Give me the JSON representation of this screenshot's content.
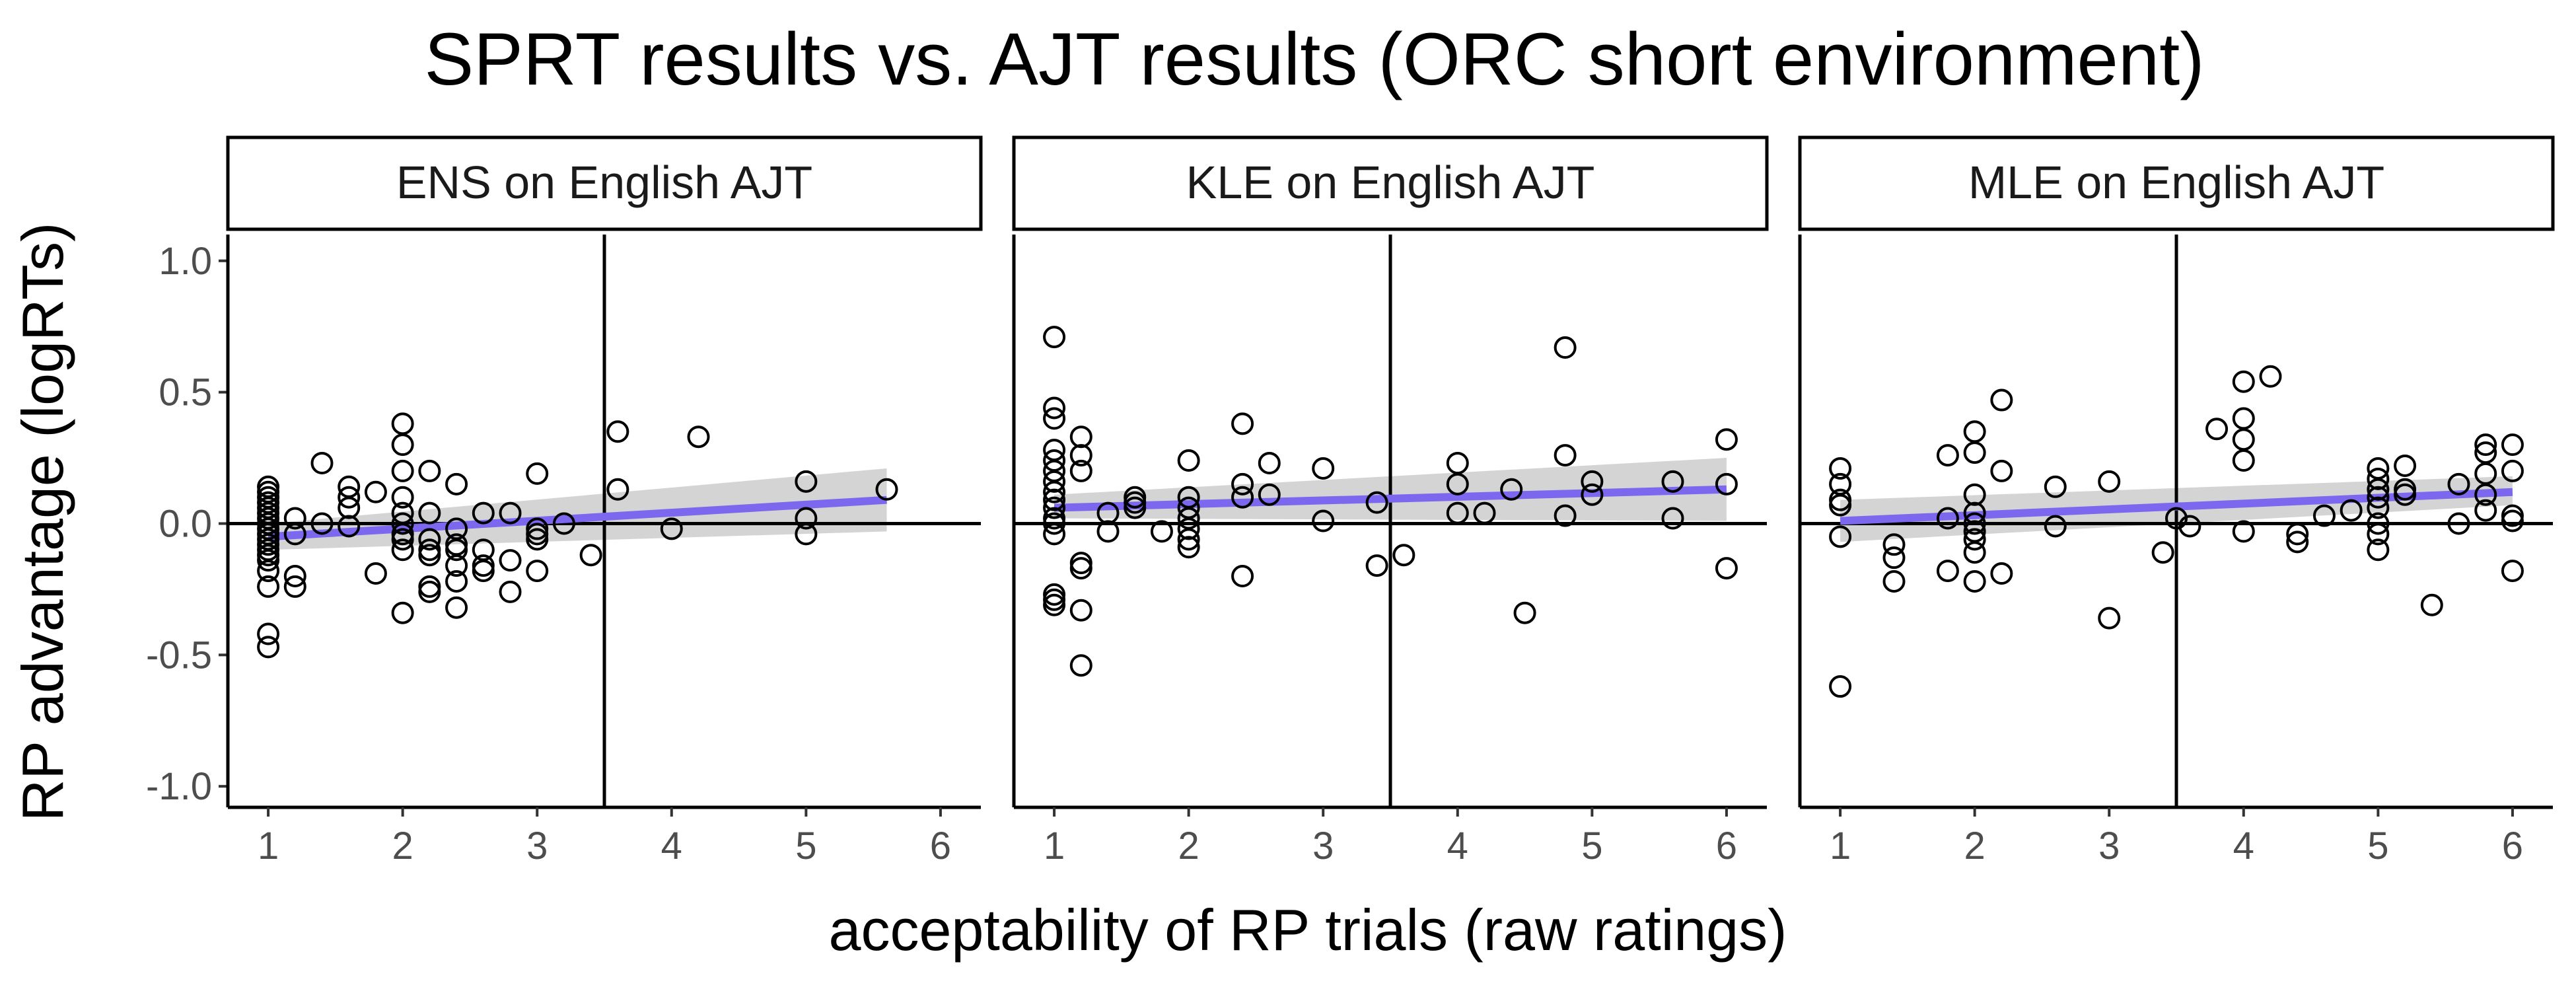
{
  "chart_data": {
    "type": "scatter",
    "title": "SPRT results vs. AJT results (ORC short environment)",
    "xlabel": "acceptability of RP trials (raw ratings)",
    "ylabel": "RP advantage (logRTs)",
    "xlim": [
      0.7,
      6.3
    ],
    "ylim": [
      -1.08,
      1.1
    ],
    "xticks": [
      1,
      2,
      3,
      4,
      5,
      6
    ],
    "yticks": [
      -1.0,
      -0.5,
      0.0,
      0.5,
      1.0
    ],
    "ytick_labels": [
      "-1.0",
      "-0.5",
      "0.0",
      "0.5",
      "1.0"
    ],
    "reference_lines": {
      "vertical_x": 3.5,
      "horizontal_y": 0
    },
    "colors": {
      "fit_line": "#7b68ee",
      "confidence_band": "#cccccc",
      "points": "#000000"
    },
    "panels": [
      {
        "label": "ENS on English AJT",
        "fit": {
          "x": [
            1.0,
            5.6
          ],
          "y": [
            -0.05,
            0.09
          ],
          "band_lo": [
            -0.1,
            -0.03
          ],
          "band_hi": [
            0.0,
            0.21
          ]
        },
        "points": [
          [
            1.0,
            0.14
          ],
          [
            1.0,
            0.12
          ],
          [
            1.0,
            0.1
          ],
          [
            1.0,
            0.08
          ],
          [
            1.0,
            0.06
          ],
          [
            1.0,
            0.04
          ],
          [
            1.0,
            0.02
          ],
          [
            1.0,
            0.0
          ],
          [
            1.0,
            -0.02
          ],
          [
            1.0,
            -0.04
          ],
          [
            1.0,
            -0.06
          ],
          [
            1.0,
            -0.08
          ],
          [
            1.0,
            -0.1
          ],
          [
            1.0,
            -0.12
          ],
          [
            1.0,
            -0.14
          ],
          [
            1.0,
            -0.18
          ],
          [
            1.0,
            -0.24
          ],
          [
            1.0,
            -0.42
          ],
          [
            1.0,
            -0.47
          ],
          [
            1.2,
            0.02
          ],
          [
            1.2,
            -0.04
          ],
          [
            1.2,
            -0.2
          ],
          [
            1.2,
            -0.24
          ],
          [
            1.4,
            0.23
          ],
          [
            1.4,
            0.0
          ],
          [
            1.6,
            0.14
          ],
          [
            1.6,
            0.1
          ],
          [
            1.6,
            0.06
          ],
          [
            1.6,
            -0.01
          ],
          [
            1.8,
            0.12
          ],
          [
            1.8,
            -0.19
          ],
          [
            2.0,
            0.38
          ],
          [
            2.0,
            0.3
          ],
          [
            2.0,
            0.2
          ],
          [
            2.0,
            0.1
          ],
          [
            2.0,
            0.04
          ],
          [
            2.0,
            0.0
          ],
          [
            2.0,
            -0.04
          ],
          [
            2.0,
            -0.06
          ],
          [
            2.0,
            -0.1
          ],
          [
            2.0,
            -0.34
          ],
          [
            2.2,
            0.2
          ],
          [
            2.2,
            0.04
          ],
          [
            2.2,
            -0.06
          ],
          [
            2.2,
            -0.1
          ],
          [
            2.2,
            -0.12
          ],
          [
            2.2,
            -0.24
          ],
          [
            2.2,
            -0.26
          ],
          [
            2.4,
            0.15
          ],
          [
            2.4,
            -0.02
          ],
          [
            2.4,
            -0.08
          ],
          [
            2.4,
            -0.1
          ],
          [
            2.4,
            -0.16
          ],
          [
            2.4,
            -0.22
          ],
          [
            2.4,
            -0.32
          ],
          [
            2.6,
            0.04
          ],
          [
            2.6,
            -0.1
          ],
          [
            2.6,
            -0.16
          ],
          [
            2.6,
            -0.18
          ],
          [
            2.8,
            0.04
          ],
          [
            2.8,
            -0.14
          ],
          [
            2.8,
            -0.26
          ],
          [
            3.0,
            0.19
          ],
          [
            3.0,
            -0.02
          ],
          [
            3.0,
            -0.04
          ],
          [
            3.0,
            -0.06
          ],
          [
            3.0,
            -0.18
          ],
          [
            3.2,
            0.0
          ],
          [
            3.4,
            -0.12
          ],
          [
            3.6,
            0.35
          ],
          [
            3.6,
            0.13
          ],
          [
            4.0,
            -0.02
          ],
          [
            4.2,
            0.33
          ],
          [
            5.0,
            0.16
          ],
          [
            5.0,
            0.02
          ],
          [
            5.0,
            -0.04
          ],
          [
            5.6,
            0.13
          ]
        ]
      },
      {
        "label": "KLE on English AJT",
        "fit": {
          "x": [
            1.0,
            6.0
          ],
          "y": [
            0.06,
            0.13
          ],
          "band_lo": [
            0.02,
            0.01
          ],
          "band_hi": [
            0.11,
            0.25
          ]
        },
        "points": [
          [
            1.0,
            0.71
          ],
          [
            1.0,
            0.44
          ],
          [
            1.0,
            0.4
          ],
          [
            1.0,
            0.28
          ],
          [
            1.0,
            0.24
          ],
          [
            1.0,
            0.2
          ],
          [
            1.0,
            0.16
          ],
          [
            1.0,
            0.12
          ],
          [
            1.0,
            0.09
          ],
          [
            1.0,
            0.06
          ],
          [
            1.0,
            0.02
          ],
          [
            1.0,
            0.0
          ],
          [
            1.0,
            -0.04
          ],
          [
            1.0,
            -0.27
          ],
          [
            1.0,
            -0.29
          ],
          [
            1.0,
            -0.31
          ],
          [
            1.2,
            0.33
          ],
          [
            1.2,
            0.26
          ],
          [
            1.2,
            0.2
          ],
          [
            1.2,
            -0.15
          ],
          [
            1.2,
            -0.17
          ],
          [
            1.2,
            -0.33
          ],
          [
            1.2,
            -0.54
          ],
          [
            1.4,
            0.04
          ],
          [
            1.4,
            -0.03
          ],
          [
            1.6,
            0.1
          ],
          [
            1.6,
            0.08
          ],
          [
            1.6,
            0.06
          ],
          [
            1.8,
            -0.03
          ],
          [
            2.0,
            0.24
          ],
          [
            2.0,
            0.1
          ],
          [
            2.0,
            0.06
          ],
          [
            2.0,
            0.02
          ],
          [
            2.0,
            -0.02
          ],
          [
            2.0,
            -0.06
          ],
          [
            2.0,
            -0.09
          ],
          [
            2.4,
            0.38
          ],
          [
            2.4,
            0.15
          ],
          [
            2.4,
            0.1
          ],
          [
            2.4,
            -0.2
          ],
          [
            2.6,
            0.23
          ],
          [
            2.6,
            0.11
          ],
          [
            3.0,
            0.21
          ],
          [
            3.0,
            0.01
          ],
          [
            3.4,
            0.08
          ],
          [
            3.4,
            -0.16
          ],
          [
            3.6,
            -0.12
          ],
          [
            4.0,
            0.23
          ],
          [
            4.0,
            0.15
          ],
          [
            4.0,
            0.04
          ],
          [
            4.2,
            0.04
          ],
          [
            4.4,
            0.13
          ],
          [
            4.5,
            -0.34
          ],
          [
            4.8,
            0.67
          ],
          [
            4.8,
            0.26
          ],
          [
            4.8,
            0.03
          ],
          [
            5.0,
            0.16
          ],
          [
            5.0,
            0.11
          ],
          [
            5.6,
            0.16
          ],
          [
            5.6,
            0.02
          ],
          [
            6.0,
            0.32
          ],
          [
            6.0,
            0.15
          ],
          [
            6.0,
            -0.17
          ]
        ]
      },
      {
        "label": "MLE on English AJT",
        "fit": {
          "x": [
            1.0,
            6.0
          ],
          "y": [
            0.01,
            0.12
          ],
          "band_lo": [
            -0.07,
            0.07
          ],
          "band_hi": [
            0.09,
            0.18
          ]
        },
        "points": [
          [
            1.0,
            0.21
          ],
          [
            1.0,
            0.15
          ],
          [
            1.0,
            0.09
          ],
          [
            1.0,
            0.07
          ],
          [
            1.0,
            -0.05
          ],
          [
            1.0,
            -0.62
          ],
          [
            1.4,
            -0.08
          ],
          [
            1.4,
            -0.13
          ],
          [
            1.4,
            -0.22
          ],
          [
            1.8,
            0.26
          ],
          [
            1.8,
            0.02
          ],
          [
            1.8,
            -0.18
          ],
          [
            2.0,
            0.35
          ],
          [
            2.0,
            0.27
          ],
          [
            2.0,
            0.11
          ],
          [
            2.0,
            0.04
          ],
          [
            2.0,
            0.0
          ],
          [
            2.0,
            -0.03
          ],
          [
            2.0,
            -0.06
          ],
          [
            2.0,
            -0.11
          ],
          [
            2.0,
            -0.22
          ],
          [
            2.2,
            0.47
          ],
          [
            2.2,
            0.2
          ],
          [
            2.2,
            -0.19
          ],
          [
            2.6,
            0.14
          ],
          [
            2.6,
            -0.01
          ],
          [
            3.0,
            0.16
          ],
          [
            3.0,
            -0.36
          ],
          [
            3.4,
            -0.11
          ],
          [
            3.5,
            0.02
          ],
          [
            3.6,
            -0.01
          ],
          [
            3.8,
            0.36
          ],
          [
            4.0,
            0.54
          ],
          [
            4.0,
            0.4
          ],
          [
            4.0,
            0.32
          ],
          [
            4.0,
            0.24
          ],
          [
            4.0,
            -0.03
          ],
          [
            4.2,
            0.56
          ],
          [
            4.4,
            -0.04
          ],
          [
            4.4,
            -0.07
          ],
          [
            4.6,
            0.03
          ],
          [
            4.8,
            0.05
          ],
          [
            5.0,
            0.21
          ],
          [
            5.0,
            0.17
          ],
          [
            5.0,
            0.13
          ],
          [
            5.0,
            0.1
          ],
          [
            5.0,
            0.06
          ],
          [
            5.0,
            0.0
          ],
          [
            5.0,
            -0.04
          ],
          [
            5.0,
            -0.1
          ],
          [
            5.2,
            0.22
          ],
          [
            5.2,
            0.13
          ],
          [
            5.2,
            0.11
          ],
          [
            5.4,
            -0.31
          ],
          [
            5.6,
            0.15
          ],
          [
            5.6,
            0.0
          ],
          [
            5.8,
            0.3
          ],
          [
            5.8,
            0.27
          ],
          [
            5.8,
            0.19
          ],
          [
            5.8,
            0.11
          ],
          [
            5.8,
            0.05
          ],
          [
            6.0,
            0.3
          ],
          [
            6.0,
            0.2
          ],
          [
            6.0,
            0.03
          ],
          [
            6.0,
            0.01
          ],
          [
            6.0,
            -0.18
          ]
        ]
      }
    ]
  }
}
